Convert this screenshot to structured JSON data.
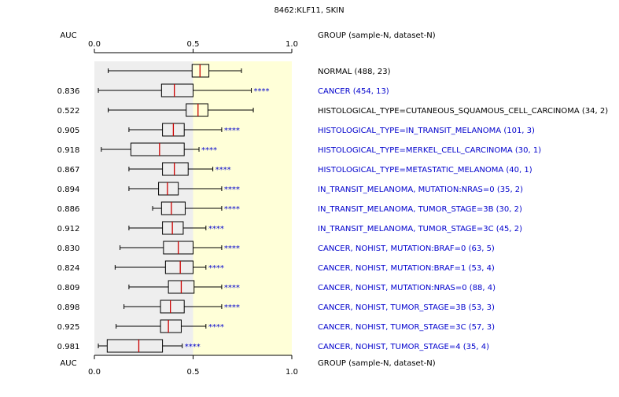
{
  "chart_data": {
    "type": "boxplot",
    "title": "8462:KLF11, SKIN",
    "auc_header": "AUC",
    "group_header": "GROUP (sample-N, dataset-N)",
    "xlim": [
      0,
      1
    ],
    "x_ticks": [
      "0.0",
      "0.5",
      "1.0"
    ],
    "shaded_regions": [
      {
        "from": 0,
        "to": 0.5,
        "color": "#eeeeee"
      },
      {
        "from": 0.5,
        "to": 1.0,
        "color": "#ffffd8"
      }
    ],
    "colors": {
      "reference_label": "#000000",
      "significant_label": "#0000cc",
      "median": "#cc0000",
      "box": "#000000",
      "stars": "#0000cc"
    },
    "groups": [
      {
        "label": "NORMAL (488, 23)",
        "auc": "",
        "significant": false,
        "stars": "",
        "whisker_low": 0.07,
        "q1": 0.495,
        "median": 0.535,
        "q3": 0.58,
        "whisker_high": 0.745
      },
      {
        "label": "CANCER (454, 13)",
        "auc": "0.836",
        "significant": true,
        "stars": "****",
        "whisker_low": 0.02,
        "q1": 0.34,
        "median": 0.405,
        "q3": 0.5,
        "whisker_high": 0.795
      },
      {
        "label": "HISTOLOGICAL_TYPE=CUTANEOUS_SQUAMOUS_CELL_CARCINOMA (34, 2)",
        "auc": "0.522",
        "significant": false,
        "stars": "",
        "whisker_low": 0.07,
        "q1": 0.465,
        "median": 0.525,
        "q3": 0.575,
        "whisker_high": 0.805
      },
      {
        "label": "HISTOLOGICAL_TYPE=IN_TRANSIT_MELANOMA (101, 3)",
        "auc": "0.905",
        "significant": true,
        "stars": "****",
        "whisker_low": 0.175,
        "q1": 0.345,
        "median": 0.4,
        "q3": 0.455,
        "whisker_high": 0.645
      },
      {
        "label": "HISTOLOGICAL_TYPE=MERKEL_CELL_CARCINOMA (30, 1)",
        "auc": "0.918",
        "significant": true,
        "stars": "****",
        "whisker_low": 0.035,
        "q1": 0.185,
        "median": 0.33,
        "q3": 0.455,
        "whisker_high": 0.53
      },
      {
        "label": "HISTOLOGICAL_TYPE=METASTATIC_MELANOMA (40, 1)",
        "auc": "0.867",
        "significant": true,
        "stars": "****",
        "whisker_low": 0.175,
        "q1": 0.345,
        "median": 0.405,
        "q3": 0.475,
        "whisker_high": 0.6
      },
      {
        "label": "IN_TRANSIT_MELANOMA, MUTATION:NRAS=0 (35, 2)",
        "auc": "0.894",
        "significant": true,
        "stars": "****",
        "whisker_low": 0.175,
        "q1": 0.325,
        "median": 0.37,
        "q3": 0.425,
        "whisker_high": 0.645
      },
      {
        "label": "IN_TRANSIT_MELANOMA, TUMOR_STAGE=3B (30, 2)",
        "auc": "0.886",
        "significant": true,
        "stars": "****",
        "whisker_low": 0.295,
        "q1": 0.34,
        "median": 0.39,
        "q3": 0.46,
        "whisker_high": 0.645
      },
      {
        "label": "IN_TRANSIT_MELANOMA, TUMOR_STAGE=3C (45, 2)",
        "auc": "0.912",
        "significant": true,
        "stars": "****",
        "whisker_low": 0.175,
        "q1": 0.345,
        "median": 0.395,
        "q3": 0.45,
        "whisker_high": 0.565
      },
      {
        "label": "CANCER, NOHIST, MUTATION:BRAF=0 (63, 5)",
        "auc": "0.830",
        "significant": true,
        "stars": "****",
        "whisker_low": 0.13,
        "q1": 0.35,
        "median": 0.425,
        "q3": 0.5,
        "whisker_high": 0.645
      },
      {
        "label": "CANCER, NOHIST, MUTATION:BRAF=1 (53, 4)",
        "auc": "0.824",
        "significant": true,
        "stars": "****",
        "whisker_low": 0.105,
        "q1": 0.36,
        "median": 0.435,
        "q3": 0.5,
        "whisker_high": 0.565
      },
      {
        "label": "CANCER, NOHIST, MUTATION:NRAS=0 (88, 4)",
        "auc": "0.809",
        "significant": true,
        "stars": "****",
        "whisker_low": 0.175,
        "q1": 0.375,
        "median": 0.44,
        "q3": 0.505,
        "whisker_high": 0.645
      },
      {
        "label": "CANCER, NOHIST, TUMOR_STAGE=3B (53, 3)",
        "auc": "0.898",
        "significant": true,
        "stars": "****",
        "whisker_low": 0.15,
        "q1": 0.335,
        "median": 0.385,
        "q3": 0.455,
        "whisker_high": 0.645
      },
      {
        "label": "CANCER, NOHIST, TUMOR_STAGE=3C (57, 3)",
        "auc": "0.925",
        "significant": true,
        "stars": "****",
        "whisker_low": 0.11,
        "q1": 0.335,
        "median": 0.375,
        "q3": 0.44,
        "whisker_high": 0.565
      },
      {
        "label": "CANCER, NOHIST, TUMOR_STAGE=4 (35, 4)",
        "auc": "0.981",
        "significant": true,
        "stars": "****",
        "whisker_low": 0.02,
        "q1": 0.065,
        "median": 0.225,
        "q3": 0.345,
        "whisker_high": 0.445
      }
    ]
  }
}
